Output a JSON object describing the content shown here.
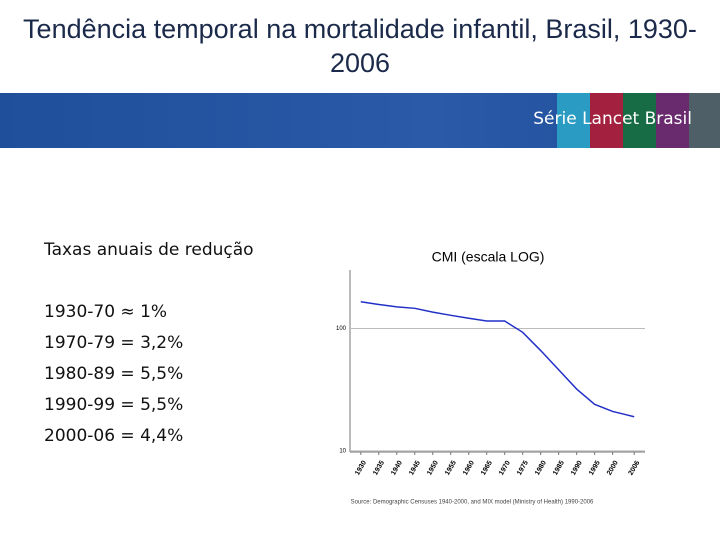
{
  "header": {
    "title": "Tendência temporal na mortalidade infantil, Brasil, 1930-2006",
    "banner": "Série Lancet Brasil"
  },
  "left_panel": {
    "heading": "Taxas anuais de redução",
    "lines": [
      "1930-70 ≈ 1%",
      "1970-79 = 3,2%",
      "1980-89 = 5,5%",
      "1990-99 = 5,5%",
      "2000-06 = 4,4%"
    ]
  },
  "chart_data": {
    "type": "line",
    "title": "CMI (escala LOG)",
    "x": [
      1930,
      1935,
      1940,
      1945,
      1950,
      1955,
      1960,
      1965,
      1970,
      1975,
      1980,
      1985,
      1990,
      1995,
      2000,
      2003,
      2006
    ],
    "series": [
      {
        "name": "CMI",
        "color": "#2230c8",
        "values": [
          165,
          157,
          150,
          146,
          136,
          128,
          121,
          115,
          115,
          93,
          66,
          46,
          32,
          24,
          21,
          20,
          19
        ]
      }
    ],
    "xlim": [
      1927,
      2009
    ],
    "xticks": [
      1930,
      1935,
      1940,
      1945,
      1950,
      1955,
      1960,
      1965,
      1970,
      1975,
      1980,
      1985,
      1990,
      1995,
      2000,
      2006
    ],
    "ylim": [
      9.8,
      300
    ],
    "yticks": [
      10,
      100
    ],
    "log_scale": true,
    "grid": true,
    "source": "Source: Demographic Censuses 1940-2000, and MIX model (Ministry of Health) 1990-2006"
  }
}
